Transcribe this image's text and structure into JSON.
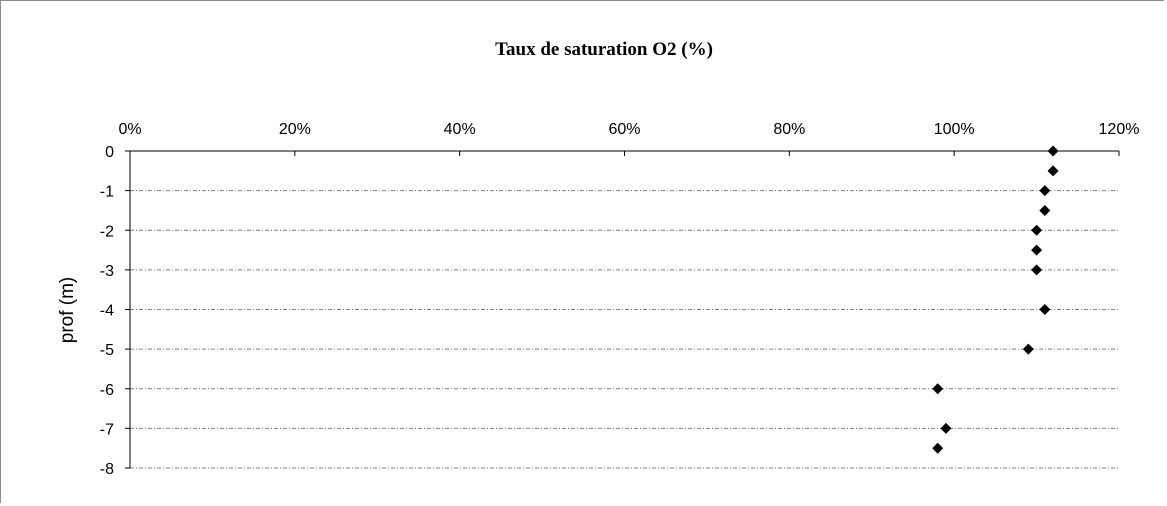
{
  "chart_data": {
    "type": "scatter",
    "title": "Taux de saturation O2 (%)",
    "xlabel": "",
    "ylabel": "prof (m)",
    "x_axis_position": "top",
    "xlim": [
      0,
      1.2
    ],
    "ylim": [
      -8,
      0
    ],
    "x_ticks": [
      {
        "value": 0,
        "label": "0%"
      },
      {
        "value": 0.2,
        "label": "20%"
      },
      {
        "value": 0.4,
        "label": "40%"
      },
      {
        "value": 0.6,
        "label": "60%"
      },
      {
        "value": 0.8,
        "label": "80%"
      },
      {
        "value": 1.0,
        "label": "100%"
      },
      {
        "value": 1.2,
        "label": "120%"
      }
    ],
    "y_ticks": [
      {
        "value": 0,
        "label": "0"
      },
      {
        "value": -1,
        "label": "-1"
      },
      {
        "value": -2,
        "label": "-2"
      },
      {
        "value": -3,
        "label": "-3"
      },
      {
        "value": -4,
        "label": "-4"
      },
      {
        "value": -5,
        "label": "-5"
      },
      {
        "value": -6,
        "label": "-6"
      },
      {
        "value": -7,
        "label": "-7"
      },
      {
        "value": -8,
        "label": "-8"
      }
    ],
    "grid": "horizontal dashed",
    "marker": "diamond",
    "marker_color": "#000000",
    "gridline_color": "#7f7f7f",
    "series": [
      {
        "points": [
          {
            "x": 1.12,
            "y": 0
          },
          {
            "x": 1.12,
            "y": -0.5
          },
          {
            "x": 1.11,
            "y": -1
          },
          {
            "x": 1.11,
            "y": -1.5
          },
          {
            "x": 1.1,
            "y": -2
          },
          {
            "x": 1.1,
            "y": -2.5
          },
          {
            "x": 1.1,
            "y": -3
          },
          {
            "x": 1.11,
            "y": -4
          },
          {
            "x": 1.09,
            "y": -5
          },
          {
            "x": 0.98,
            "y": -6
          },
          {
            "x": 0.99,
            "y": -7
          },
          {
            "x": 0.98,
            "y": -7.5
          }
        ]
      }
    ]
  }
}
